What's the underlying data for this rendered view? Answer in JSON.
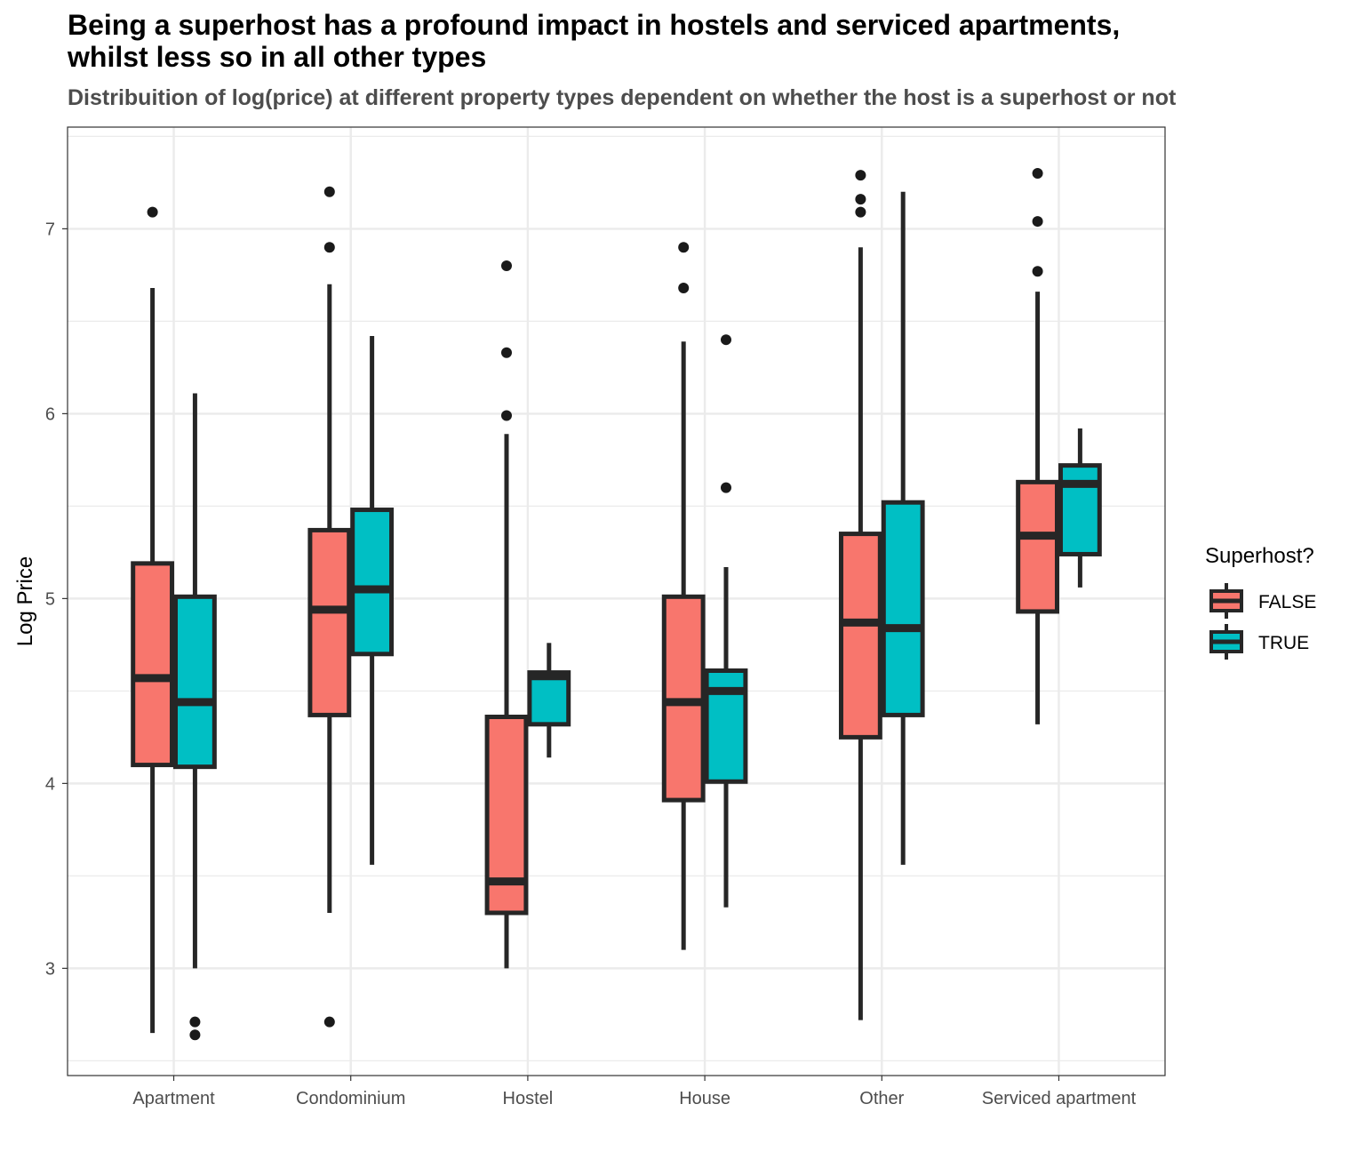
{
  "chart_data": {
    "type": "boxplot",
    "title": "Being a superhost has a profound impact in hostels and serviced apartments, whilst less so in all other types",
    "subtitle": "Distribuition of log(price) at different property types dependent on whether the host is a superhost or not",
    "xlabel": "",
    "ylabel": "Log Price",
    "ylim": [
      2.42,
      7.55
    ],
    "yticks": [
      3,
      4,
      5,
      6,
      7
    ],
    "grid": true,
    "legend": {
      "title": "Superhost?",
      "position": "right",
      "entries": [
        "FALSE",
        "TRUE"
      ]
    },
    "categories": [
      "Apartment",
      "Condominium",
      "Hostel",
      "House",
      "Other",
      "Serviced apartment"
    ],
    "series": [
      {
        "name": "FALSE",
        "color": "#F8766D",
        "boxes": [
          {
            "whisker_low": 2.65,
            "q1": 4.1,
            "median": 4.57,
            "q3": 5.19,
            "whisker_high": 6.68,
            "outliers": [
              7.09
            ]
          },
          {
            "whisker_low": 3.3,
            "q1": 4.37,
            "median": 4.94,
            "q3": 5.37,
            "whisker_high": 6.7,
            "outliers": [
              7.2,
              6.9,
              2.71
            ]
          },
          {
            "whisker_low": 3.0,
            "q1": 3.3,
            "median": 3.47,
            "q3": 4.36,
            "whisker_high": 5.89,
            "outliers": [
              6.8,
              6.33,
              5.99
            ]
          },
          {
            "whisker_low": 3.1,
            "q1": 3.91,
            "median": 4.44,
            "q3": 5.01,
            "whisker_high": 6.39,
            "outliers": [
              6.9,
              6.68
            ]
          },
          {
            "whisker_low": 2.72,
            "q1": 4.25,
            "median": 4.87,
            "q3": 5.35,
            "whisker_high": 6.9,
            "outliers": [
              7.29,
              7.16,
              7.09
            ]
          },
          {
            "whisker_low": 4.32,
            "q1": 4.93,
            "median": 5.34,
            "q3": 5.63,
            "whisker_high": 6.66,
            "outliers": [
              7.3,
              7.04,
              6.77
            ]
          }
        ]
      },
      {
        "name": "TRUE",
        "color": "#00BFC4",
        "boxes": [
          {
            "whisker_low": 3.0,
            "q1": 4.09,
            "median": 4.44,
            "q3": 5.01,
            "whisker_high": 6.11,
            "outliers": [
              2.71,
              2.64
            ]
          },
          {
            "whisker_low": 3.56,
            "q1": 4.7,
            "median": 5.05,
            "q3": 5.48,
            "whisker_high": 6.42,
            "outliers": []
          },
          {
            "whisker_low": 4.14,
            "q1": 4.32,
            "median": 4.58,
            "q3": 4.6,
            "whisker_high": 4.76,
            "outliers": []
          },
          {
            "whisker_low": 3.33,
            "q1": 4.01,
            "median": 4.5,
            "q3": 4.61,
            "whisker_high": 5.17,
            "outliers": [
              6.4,
              5.6
            ]
          },
          {
            "whisker_low": 3.56,
            "q1": 4.37,
            "median": 4.84,
            "q3": 5.52,
            "whisker_high": 7.2,
            "outliers": []
          },
          {
            "whisker_low": 5.06,
            "q1": 5.24,
            "median": 5.62,
            "q3": 5.72,
            "whisker_high": 5.92,
            "outliers": []
          }
        ]
      }
    ]
  }
}
